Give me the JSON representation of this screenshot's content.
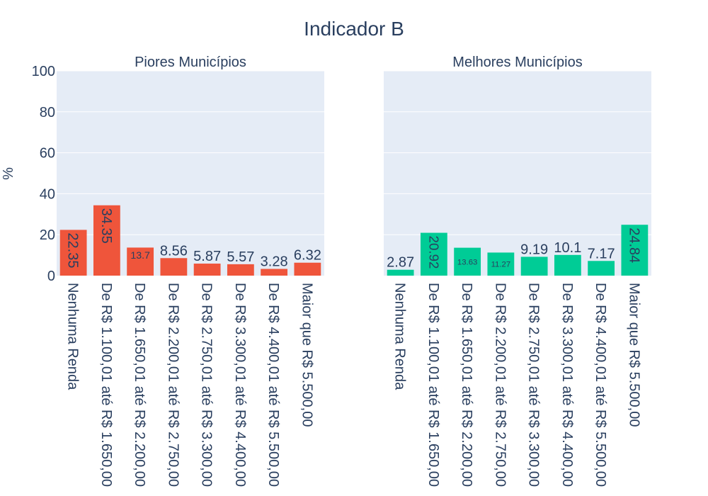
{
  "chart_title": "Indicador B",
  "ylabel": "%",
  "colors": {
    "piores": "#ef553b",
    "melhores": "#00cc96",
    "plot_bg": "#e5ecf6",
    "text": "#2a3f5f"
  },
  "chart_data": [
    {
      "type": "bar",
      "title": "Piores Municípios",
      "categories": [
        "Nenhuma Renda",
        "De R$ 1.100,01 até R$ 1.650,00",
        "De R$ 1.650,01 até R$ 2.200,00",
        "De R$ 2.200,01 até R$ 2.750,00",
        "De R$ 2.750,01 até R$ 3.300,00",
        "De R$ 3.300,01 até R$ 4.400,00",
        "De R$ 4.400,01 até R$ 5.500,00",
        "Maior que R$ 5.500,00"
      ],
      "values": [
        22.35,
        34.35,
        13.7,
        8.56,
        5.87,
        5.57,
        3.28,
        6.32
      ],
      "value_labels": [
        "22.35",
        "34.35",
        "13.7",
        "8.56",
        "5.87",
        "5.57",
        "3.28",
        "6.32"
      ],
      "ylim": [
        0,
        100
      ],
      "yticks": [
        0,
        20,
        40,
        60,
        80,
        100
      ],
      "color": "#ef553b"
    },
    {
      "type": "bar",
      "title": "Melhores Municípios",
      "categories": [
        "Nenhuma Renda",
        "De R$ 1.100,01 até R$ 1.650,00",
        "De R$ 1.650,01 até R$ 2.200,00",
        "De R$ 2.200,01 até R$ 2.750,00",
        "De R$ 2.750,01 até R$ 3.300,00",
        "De R$ 3.300,01 até R$ 4.400,00",
        "De R$ 4.400,01 até R$ 5.500,00",
        "Maior que R$ 5.500,00"
      ],
      "values": [
        2.87,
        20.92,
        13.63,
        11.27,
        9.19,
        10.1,
        7.17,
        24.84
      ],
      "value_labels": [
        "2.87",
        "20.92",
        "13.63",
        "11.27",
        "9.19",
        "10.1",
        "7.17",
        "24.84"
      ],
      "ylim": [
        0,
        100
      ],
      "yticks": [
        0,
        20,
        40,
        60,
        80,
        100
      ],
      "color": "#00cc96"
    }
  ]
}
